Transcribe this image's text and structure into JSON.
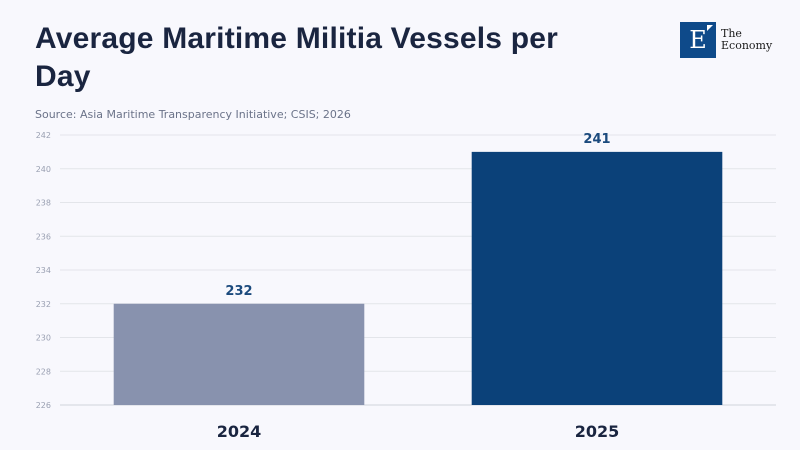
{
  "header": {
    "title": "Average Maritime Militia Vessels per Day",
    "source": "Source: Asia Maritime Transparency Initiative; CSIS; 2026"
  },
  "logo": {
    "letter": "E",
    "line1": "The",
    "line2": "Economy"
  },
  "chart_data": {
    "type": "bar",
    "title": "Average Maritime Militia Vessels per Day",
    "xlabel": "",
    "ylabel": "",
    "categories": [
      "2024",
      "2025"
    ],
    "values": [
      232,
      241
    ],
    "data_labels": [
      "232",
      "241"
    ],
    "colors": [
      "#8892ae",
      "#0b4179"
    ],
    "ylim": [
      226,
      242
    ],
    "yticks": [
      226,
      228,
      230,
      232,
      234,
      236,
      238,
      240,
      242
    ],
    "grid": true,
    "legend": "none"
  }
}
